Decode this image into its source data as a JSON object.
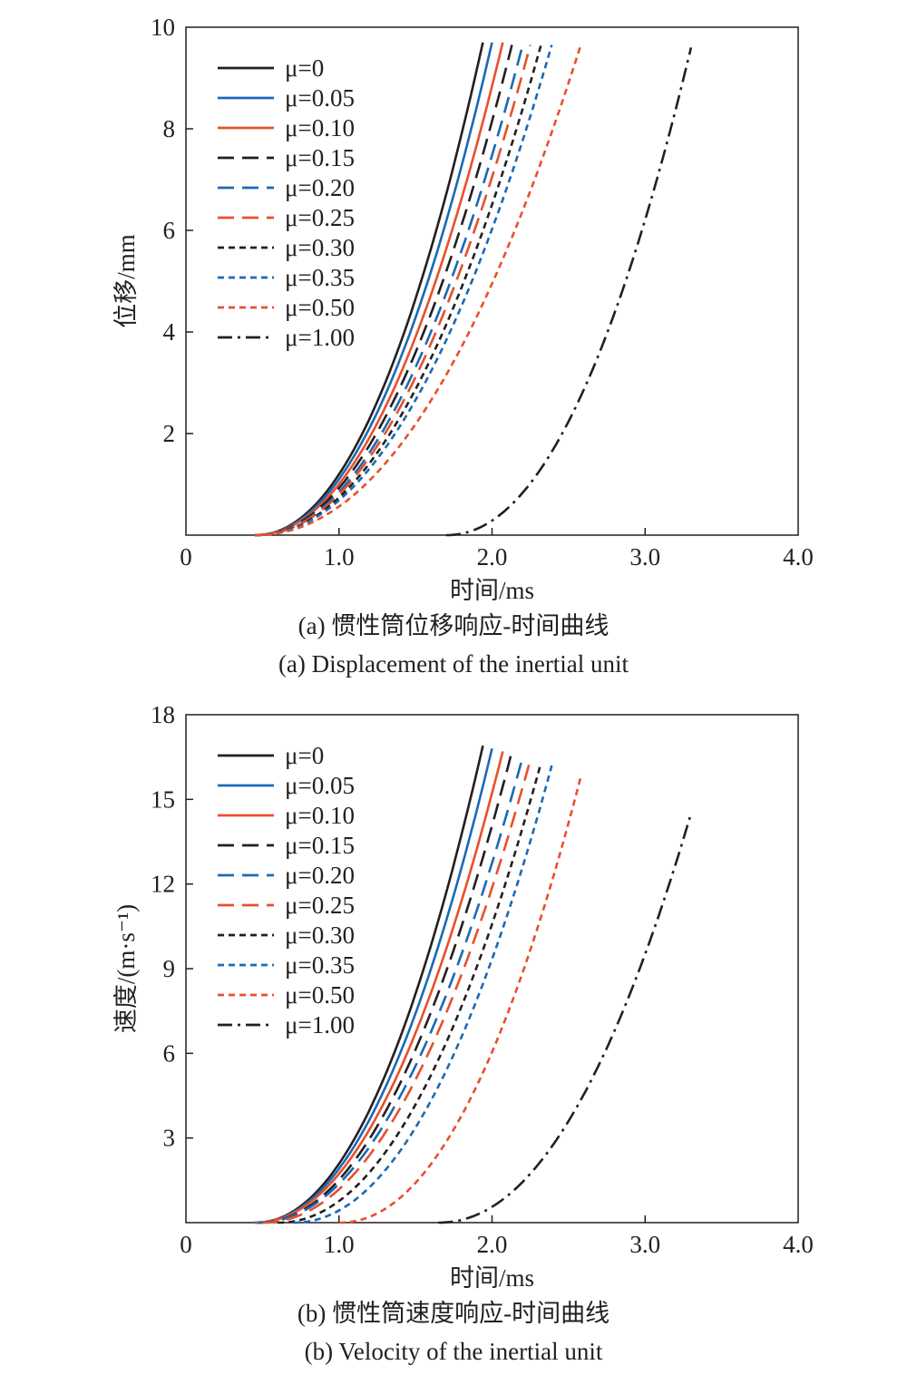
{
  "chart_data": [
    {
      "type": "line",
      "caption_cn": "(a) 惯性筒位移响应-时间曲线",
      "caption_en": "(a) Displacement of the inertial unit",
      "xlabel": "时间/ms",
      "ylabel": "位移/mm",
      "xlim": [
        0.0,
        4.0
      ],
      "ylim": [
        0,
        10
      ],
      "xticks": [
        "0",
        "1.0",
        "2.0",
        "3.0",
        "4.0"
      ],
      "yticks": [
        "2",
        "4",
        "6",
        "8",
        "10"
      ],
      "grid": false,
      "legend_position": "top-left",
      "series": [
        {
          "name": "μ=0",
          "color": "#231f20",
          "dash": "solid",
          "t0": 0.45,
          "t1": 1.94,
          "y1": 9.7
        },
        {
          "name": "μ=0.05",
          "color": "#1a6ab4",
          "dash": "solid",
          "t0": 0.45,
          "t1": 2.0,
          "y1": 9.7
        },
        {
          "name": "μ=0.10",
          "color": "#e8502b",
          "dash": "solid",
          "t0": 0.45,
          "t1": 2.07,
          "y1": 9.7
        },
        {
          "name": "μ=0.15",
          "color": "#231f20",
          "dash": "long-dash",
          "t0": 0.45,
          "t1": 2.13,
          "y1": 9.65
        },
        {
          "name": "μ=0.20",
          "color": "#1a6ab4",
          "dash": "long-dash",
          "t0": 0.45,
          "t1": 2.2,
          "y1": 9.65
        },
        {
          "name": "μ=0.25",
          "color": "#e8502b",
          "dash": "long-dash",
          "t0": 0.45,
          "t1": 2.25,
          "y1": 9.65
        },
        {
          "name": "μ=0.30",
          "color": "#231f20",
          "dash": "short-dash",
          "t0": 0.45,
          "t1": 2.32,
          "y1": 9.65
        },
        {
          "name": "μ=0.35",
          "color": "#1a6ab4",
          "dash": "short-dash",
          "t0": 0.45,
          "t1": 2.39,
          "y1": 9.65
        },
        {
          "name": "μ=0.50",
          "color": "#e8502b",
          "dash": "short-dash",
          "t0": 0.45,
          "t1": 2.58,
          "y1": 9.65
        },
        {
          "name": "μ=1.00",
          "color": "#231f20",
          "dash": "dash-dot",
          "t0": 1.7,
          "t1": 3.3,
          "y1": 9.6
        }
      ]
    },
    {
      "type": "line",
      "caption_cn": "(b) 惯性筒速度响应-时间曲线",
      "caption_en": "(b) Velocity of the inertial unit",
      "xlabel": "时间/ms",
      "ylabel": "速度/(m·s⁻¹)",
      "xlim": [
        0.0,
        4.0
      ],
      "ylim": [
        0,
        18
      ],
      "xticks": [
        "0",
        "1.0",
        "2.0",
        "3.0",
        "4.0"
      ],
      "yticks": [
        "3",
        "6",
        "9",
        "12",
        "15",
        "18"
      ],
      "grid": false,
      "legend_position": "top-left",
      "series": [
        {
          "name": "μ=0",
          "color": "#231f20",
          "dash": "solid",
          "t0": 0.45,
          "t1": 1.94,
          "y1": 16.9
        },
        {
          "name": "μ=0.05",
          "color": "#1a6ab4",
          "dash": "solid",
          "t0": 0.45,
          "t1": 2.0,
          "y1": 16.8
        },
        {
          "name": "μ=0.10",
          "color": "#e8502b",
          "dash": "solid",
          "t0": 0.45,
          "t1": 2.07,
          "y1": 16.7
        },
        {
          "name": "μ=0.15",
          "color": "#231f20",
          "dash": "long-dash",
          "t0": 0.47,
          "t1": 2.13,
          "y1": 16.7
        },
        {
          "name": "μ=0.20",
          "color": "#1a6ab4",
          "dash": "long-dash",
          "t0": 0.47,
          "t1": 2.2,
          "y1": 16.5
        },
        {
          "name": "μ=0.25",
          "color": "#e8502b",
          "dash": "long-dash",
          "t0": 0.5,
          "t1": 2.25,
          "y1": 16.4
        },
        {
          "name": "μ=0.30",
          "color": "#231f20",
          "dash": "short-dash",
          "t0": 0.6,
          "t1": 2.32,
          "y1": 16.3
        },
        {
          "name": "μ=0.35",
          "color": "#1a6ab4",
          "dash": "short-dash",
          "t0": 0.7,
          "t1": 2.39,
          "y1": 16.2
        },
        {
          "name": "μ=0.50",
          "color": "#e8502b",
          "dash": "short-dash",
          "t0": 1.0,
          "t1": 2.58,
          "y1": 15.8
        },
        {
          "name": "μ=1.00",
          "color": "#231f20",
          "dash": "dash-dot",
          "t0": 1.65,
          "t1": 3.3,
          "y1": 14.5
        }
      ]
    }
  ]
}
